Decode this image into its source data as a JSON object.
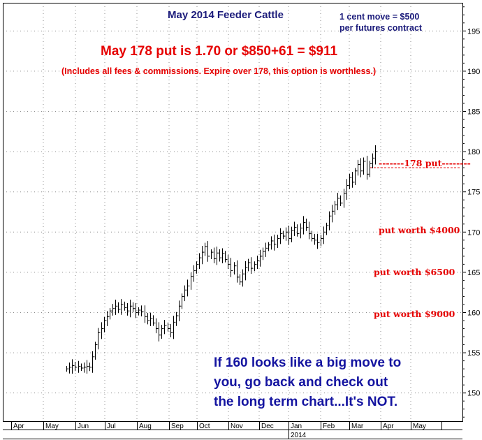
{
  "chart_data": {
    "type": "bar",
    "title": "May 2014 Feeder Cattle",
    "price_axis": {
      "ticks": [
        150,
        155,
        160,
        165,
        170,
        175,
        180,
        185,
        190,
        195
      ],
      "ylim": [
        146.5,
        198.5
      ],
      "side": "right"
    },
    "time_axis": {
      "months": [
        "Apr",
        "May",
        "Jun",
        "Jul",
        "Aug",
        "Sep",
        "Oct",
        "Nov",
        "Dec",
        "Jan",
        "Feb",
        "Mar",
        "Apr",
        "May"
      ],
      "year_label": "2014"
    },
    "grid": true,
    "series": [
      {
        "values": [
          153.0,
          153.2,
          153.4,
          153.2,
          153.3,
          153.1,
          153.2,
          153.3,
          153.2,
          154.5,
          156.0,
          157.5,
          158.0,
          159.0,
          159.5,
          160.2,
          160.5,
          160.8,
          160.4,
          161.0,
          160.6,
          160.2,
          160.8,
          160.5,
          160.0,
          160.3,
          160.1,
          159.5,
          159.0,
          159.3,
          158.7,
          158.0,
          157.2,
          158.0,
          158.4,
          158.0,
          157.5,
          158.8,
          159.6,
          160.8,
          162.0,
          162.8,
          163.3,
          164.5,
          165.2,
          166.0,
          166.8,
          167.5,
          168.2,
          167.0,
          167.5,
          166.7,
          167.4,
          166.8,
          167.3,
          166.6,
          166.0,
          165.2,
          165.8,
          164.4,
          163.8,
          164.8,
          165.6,
          166.2,
          165.5,
          166.0,
          166.5,
          167.0,
          167.6,
          168.0,
          168.4,
          168.9,
          168.5,
          169.2,
          169.8,
          169.5,
          170.0,
          169.2,
          170.2,
          170.6,
          169.8,
          170.5,
          171.2,
          170.6,
          169.8,
          169.2,
          169.0,
          168.7,
          169.2,
          170.0,
          170.8,
          172.0,
          172.6,
          173.4,
          174.2,
          173.6,
          174.8,
          175.8,
          176.8,
          176.2,
          177.6,
          178.4,
          177.6,
          178.8,
          177.2,
          178.5,
          179.2,
          180.0
        ]
      }
    ]
  },
  "annotations": {
    "contract_note_1": "1 cent move = $500",
    "contract_note_2": "per futures contract",
    "headline": "May 178 put is 1.70 or $850+61 = $911",
    "subline": "(Includes all fees & commissions. Expire over 178, this option is worthless.)",
    "put_strike": "-------178 put--------",
    "put_values": [
      "put worth $4000",
      "put worth $6500",
      "put worth $9000"
    ],
    "bottom_note": [
      "If 160 looks like a big move to",
      "you, go back and check out",
      "the long term chart...It's NOT."
    ]
  },
  "colors": {
    "bars": "#000000",
    "grid": "#8c8c8c",
    "title": "#1a1a7a",
    "red_text": "#e60000",
    "blue_text": "#1414a0",
    "put_line": "#e60000"
  }
}
